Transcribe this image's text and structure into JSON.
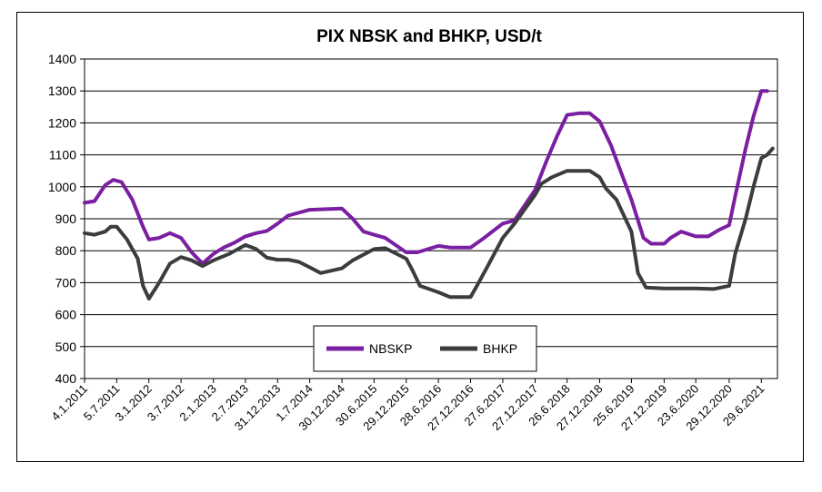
{
  "chart_data": {
    "type": "line",
    "title": "PIX NBSK and BHKP, USD/t",
    "xlabel": "",
    "ylabel": "",
    "ylim": [
      400,
      1400
    ],
    "yticks": [
      400,
      500,
      600,
      700,
      800,
      900,
      1000,
      1100,
      1200,
      1300,
      1400
    ],
    "xlim": [
      "2011-01-04",
      "2021-09-28"
    ],
    "xtick_labels": [
      "4.1.2011",
      "5.7.2011",
      "3.1.2012",
      "3.7.2012",
      "2.1.2013",
      "2.7.2013",
      "31.12.2013",
      "1.7.2014",
      "30.12.2014",
      "30.6.2015",
      "29.12.2015",
      "28.6.2016",
      "27.12.2016",
      "27.6.2017",
      "27.12.2017",
      "26.6.2018",
      "27.12.2018",
      "25.6.2019",
      "27.12.2019",
      "23.6.2020",
      "29.12.2020",
      "29.6.2021"
    ],
    "xtick_dates": [
      "2011-01-04",
      "2011-07-05",
      "2012-01-03",
      "2012-07-03",
      "2013-01-02",
      "2013-07-02",
      "2013-12-31",
      "2014-07-01",
      "2014-12-30",
      "2015-06-30",
      "2015-12-29",
      "2016-06-28",
      "2016-12-27",
      "2017-06-27",
      "2017-12-27",
      "2018-06-26",
      "2018-12-27",
      "2019-06-25",
      "2019-12-27",
      "2020-06-23",
      "2020-12-29",
      "2021-06-29"
    ],
    "grid": true,
    "legend_position": "bottom-center",
    "series": [
      {
        "name": "NBSKP",
        "color": "#7b1fa2",
        "points": [
          [
            "2011-01-04",
            950
          ],
          [
            "2011-03-01",
            955
          ],
          [
            "2011-05-01",
            1005
          ],
          [
            "2011-06-15",
            1022
          ],
          [
            "2011-08-01",
            1015
          ],
          [
            "2011-10-01",
            960
          ],
          [
            "2011-12-01",
            875
          ],
          [
            "2012-01-03",
            835
          ],
          [
            "2012-03-01",
            840
          ],
          [
            "2012-05-01",
            855
          ],
          [
            "2012-07-03",
            840
          ],
          [
            "2012-09-01",
            795
          ],
          [
            "2012-11-01",
            760
          ],
          [
            "2013-01-02",
            790
          ],
          [
            "2013-03-01",
            810
          ],
          [
            "2013-05-01",
            825
          ],
          [
            "2013-07-02",
            845
          ],
          [
            "2013-09-01",
            855
          ],
          [
            "2013-11-01",
            862
          ],
          [
            "2013-12-31",
            885
          ],
          [
            "2014-03-01",
            910
          ],
          [
            "2014-07-01",
            928
          ],
          [
            "2014-10-01",
            930
          ],
          [
            "2014-12-30",
            932
          ],
          [
            "2015-03-01",
            900
          ],
          [
            "2015-05-01",
            860
          ],
          [
            "2015-06-30",
            850
          ],
          [
            "2015-09-01",
            840
          ],
          [
            "2015-12-29",
            795
          ],
          [
            "2016-03-01",
            795
          ],
          [
            "2016-06-28",
            815
          ],
          [
            "2016-09-01",
            810
          ],
          [
            "2016-12-27",
            810
          ],
          [
            "2017-03-01",
            835
          ],
          [
            "2017-06-27",
            885
          ],
          [
            "2017-09-01",
            895
          ],
          [
            "2017-12-27",
            990
          ],
          [
            "2018-03-01",
            1080
          ],
          [
            "2018-05-01",
            1160
          ],
          [
            "2018-06-26",
            1225
          ],
          [
            "2018-09-01",
            1230
          ],
          [
            "2018-11-01",
            1230
          ],
          [
            "2018-12-27",
            1205
          ],
          [
            "2019-03-01",
            1130
          ],
          [
            "2019-05-01",
            1040
          ],
          [
            "2019-06-25",
            960
          ],
          [
            "2019-09-01",
            840
          ],
          [
            "2019-10-15",
            822
          ],
          [
            "2019-12-27",
            822
          ],
          [
            "2020-02-01",
            840
          ],
          [
            "2020-04-01",
            860
          ],
          [
            "2020-06-23",
            845
          ],
          [
            "2020-09-01",
            845
          ],
          [
            "2020-11-01",
            865
          ],
          [
            "2020-12-29",
            880
          ],
          [
            "2021-02-01",
            970
          ],
          [
            "2021-04-01",
            1120
          ],
          [
            "2021-05-15",
            1220
          ],
          [
            "2021-06-29",
            1300
          ],
          [
            "2021-08-01",
            1300
          ]
        ]
      },
      {
        "name": "BHKP",
        "color": "#3c3c3c",
        "points": [
          [
            "2011-01-04",
            855
          ],
          [
            "2011-03-01",
            850
          ],
          [
            "2011-05-01",
            860
          ],
          [
            "2011-06-01",
            875
          ],
          [
            "2011-07-05",
            875
          ],
          [
            "2011-09-01",
            835
          ],
          [
            "2011-11-01",
            775
          ],
          [
            "2011-12-01",
            690
          ],
          [
            "2012-01-03",
            650
          ],
          [
            "2012-03-01",
            700
          ],
          [
            "2012-05-01",
            760
          ],
          [
            "2012-07-03",
            780
          ],
          [
            "2012-09-01",
            770
          ],
          [
            "2012-11-01",
            752
          ],
          [
            "2013-01-02",
            770
          ],
          [
            "2013-04-01",
            790
          ],
          [
            "2013-07-02",
            818
          ],
          [
            "2013-09-01",
            805
          ],
          [
            "2013-11-01",
            778
          ],
          [
            "2013-12-31",
            772
          ],
          [
            "2014-03-01",
            772
          ],
          [
            "2014-05-01",
            765
          ],
          [
            "2014-07-01",
            748
          ],
          [
            "2014-09-01",
            730
          ],
          [
            "2014-12-30",
            745
          ],
          [
            "2015-03-01",
            770
          ],
          [
            "2015-06-30",
            805
          ],
          [
            "2015-09-01",
            808
          ],
          [
            "2015-12-29",
            775
          ],
          [
            "2016-02-01",
            740
          ],
          [
            "2016-03-15",
            690
          ],
          [
            "2016-06-28",
            670
          ],
          [
            "2016-09-01",
            655
          ],
          [
            "2016-12-27",
            655
          ],
          [
            "2017-02-01",
            690
          ],
          [
            "2017-04-01",
            750
          ],
          [
            "2017-06-27",
            840
          ],
          [
            "2017-09-01",
            885
          ],
          [
            "2017-12-27",
            975
          ],
          [
            "2018-02-01",
            1010
          ],
          [
            "2018-04-01",
            1030
          ],
          [
            "2018-06-26",
            1050
          ],
          [
            "2018-09-01",
            1050
          ],
          [
            "2018-11-01",
            1050
          ],
          [
            "2018-12-27",
            1030
          ],
          [
            "2019-02-01",
            995
          ],
          [
            "2019-04-01",
            960
          ],
          [
            "2019-06-25",
            860
          ],
          [
            "2019-08-01",
            730
          ],
          [
            "2019-09-15",
            685
          ],
          [
            "2019-12-27",
            682
          ],
          [
            "2020-06-23",
            682
          ],
          [
            "2020-10-01",
            680
          ],
          [
            "2020-12-29",
            690
          ],
          [
            "2021-02-01",
            790
          ],
          [
            "2021-04-01",
            900
          ],
          [
            "2021-05-15",
            1000
          ],
          [
            "2021-06-29",
            1090
          ],
          [
            "2021-08-01",
            1100
          ],
          [
            "2021-09-01",
            1120
          ]
        ]
      }
    ]
  }
}
